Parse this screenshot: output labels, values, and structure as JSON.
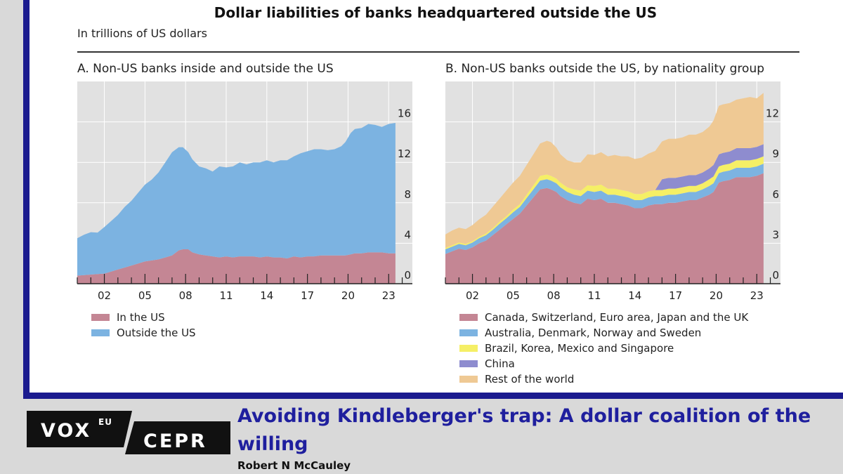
{
  "title": "Dollar liabilities of banks headquartered outside the US",
  "subtitle": "In trillions of US dollars",
  "footer": {
    "logo_vox": "VOX",
    "logo_eu": "EU",
    "logo_cepr": "CEPR",
    "article_title": "Avoiding Kindleberger's trap: A dollar coalition of the willing",
    "author": "Robert N McCauley"
  },
  "colors": {
    "in_us": "#c48694",
    "outside_us": "#7cb3e1",
    "g5": "#c48694",
    "adns": "#7cb3e1",
    "bkms": "#f5ef66",
    "china": "#8e8ccf",
    "rest": "#efc994",
    "plot_bg": "#e1e1e1",
    "frame": "#1b1b8f"
  },
  "chart_data": [
    {
      "type": "area",
      "stacked": true,
      "title": "A. Non-US banks inside and outside the US",
      "x_tick_labels": [
        "02",
        "05",
        "08",
        "11",
        "14",
        "17",
        "20",
        "23"
      ],
      "x_ticks": [
        2002,
        2005,
        2008,
        2011,
        2014,
        2017,
        2020,
        2023
      ],
      "y_ticks": [
        0,
        4,
        8,
        12,
        16
      ],
      "ylim": [
        0,
        20
      ],
      "xlim": [
        2000,
        2024.75
      ],
      "grid": true,
      "legend_position": "bottom-left",
      "x": [
        2000.0,
        2000.5,
        2001.0,
        2001.5,
        2002.0,
        2002.5,
        2003.0,
        2003.5,
        2004.0,
        2004.5,
        2005.0,
        2005.5,
        2006.0,
        2006.5,
        2007.0,
        2007.5,
        2007.8,
        2008.2,
        2008.5,
        2009.0,
        2009.5,
        2010.0,
        2010.5,
        2011.0,
        2011.5,
        2012.0,
        2012.5,
        2013.0,
        2013.5,
        2014.0,
        2014.5,
        2015.0,
        2015.5,
        2016.0,
        2016.5,
        2017.0,
        2017.5,
        2018.0,
        2018.5,
        2019.0,
        2019.5,
        2019.8,
        2020.2,
        2020.5,
        2021.0,
        2021.5,
        2022.0,
        2022.5,
        2023.0,
        2023.5
      ],
      "series": [
        {
          "name": "In the US",
          "values": [
            0.8,
            0.85,
            0.9,
            0.95,
            1.0,
            1.2,
            1.4,
            1.6,
            1.8,
            2.0,
            2.2,
            2.3,
            2.4,
            2.6,
            2.8,
            3.3,
            3.4,
            3.4,
            3.1,
            2.9,
            2.8,
            2.7,
            2.6,
            2.7,
            2.6,
            2.7,
            2.7,
            2.7,
            2.6,
            2.7,
            2.6,
            2.6,
            2.5,
            2.7,
            2.6,
            2.7,
            2.7,
            2.8,
            2.8,
            2.8,
            2.8,
            2.8,
            2.9,
            3.0,
            3.0,
            3.1,
            3.1,
            3.1,
            3.0,
            3.0
          ]
        },
        {
          "name": "Outside the US",
          "values": [
            3.7,
            4.0,
            4.2,
            4.1,
            4.6,
            5.0,
            5.4,
            6.0,
            6.4,
            7.0,
            7.6,
            8.0,
            8.6,
            9.4,
            10.2,
            10.2,
            10.1,
            9.6,
            9.2,
            8.7,
            8.6,
            8.4,
            9.0,
            8.8,
            9.0,
            9.3,
            9.1,
            9.3,
            9.4,
            9.5,
            9.4,
            9.6,
            9.7,
            9.9,
            10.3,
            10.4,
            10.6,
            10.5,
            10.4,
            10.5,
            10.8,
            11.2,
            12.0,
            12.3,
            12.4,
            12.7,
            12.6,
            12.4,
            12.8,
            12.9
          ]
        }
      ]
    },
    {
      "type": "area",
      "stacked": true,
      "title": "B. Non-US banks outside the US, by nationality group",
      "x_tick_labels": [
        "02",
        "05",
        "08",
        "11",
        "14",
        "17",
        "20",
        "23"
      ],
      "x_ticks": [
        2002,
        2005,
        2008,
        2011,
        2014,
        2017,
        2020,
        2023
      ],
      "y_ticks": [
        0,
        3,
        6,
        9,
        12
      ],
      "ylim": [
        0,
        15
      ],
      "xlim": [
        2000,
        2024.75
      ],
      "grid": true,
      "legend_position": "bottom-left",
      "x": [
        2000.0,
        2000.5,
        2001.0,
        2001.5,
        2002.0,
        2002.5,
        2003.0,
        2003.5,
        2004.0,
        2004.5,
        2005.0,
        2005.5,
        2006.0,
        2006.5,
        2007.0,
        2007.5,
        2007.8,
        2008.2,
        2008.5,
        2009.0,
        2009.5,
        2010.0,
        2010.5,
        2011.0,
        2011.5,
        2012.0,
        2012.5,
        2013.0,
        2013.5,
        2014.0,
        2014.5,
        2015.0,
        2015.5,
        2016.0,
        2016.5,
        2017.0,
        2017.5,
        2018.0,
        2018.5,
        2019.0,
        2019.5,
        2019.8,
        2020.2,
        2020.5,
        2021.0,
        2021.5,
        2022.0,
        2022.5,
        2023.0,
        2023.5
      ],
      "series": [
        {
          "name": "Canada, Switzerland, Euro area, Japan and the UK",
          "values": [
            2.2,
            2.4,
            2.6,
            2.5,
            2.7,
            3.0,
            3.2,
            3.6,
            4.0,
            4.4,
            4.8,
            5.2,
            5.8,
            6.4,
            7.0,
            7.1,
            7.0,
            6.8,
            6.5,
            6.2,
            6.0,
            5.9,
            6.3,
            6.2,
            6.3,
            6.0,
            6.0,
            5.9,
            5.8,
            5.6,
            5.6,
            5.8,
            5.9,
            5.9,
            6.0,
            6.0,
            6.1,
            6.2,
            6.2,
            6.4,
            6.6,
            6.8,
            7.5,
            7.6,
            7.7,
            7.9,
            7.9,
            7.9,
            8.0,
            8.2
          ]
        },
        {
          "name": "Australia, Denmark, Norway and Sweden",
          "values": [
            0.35,
            0.35,
            0.35,
            0.35,
            0.35,
            0.38,
            0.4,
            0.4,
            0.45,
            0.45,
            0.5,
            0.5,
            0.55,
            0.6,
            0.65,
            0.65,
            0.65,
            0.65,
            0.65,
            0.6,
            0.6,
            0.6,
            0.6,
            0.6,
            0.6,
            0.6,
            0.6,
            0.6,
            0.6,
            0.6,
            0.6,
            0.6,
            0.6,
            0.6,
            0.6,
            0.6,
            0.6,
            0.6,
            0.6,
            0.6,
            0.65,
            0.65,
            0.7,
            0.7,
            0.7,
            0.7,
            0.7,
            0.7,
            0.7,
            0.7
          ]
        },
        {
          "name": "Brazil, Korea, Mexico and Singapore",
          "values": [
            0.1,
            0.1,
            0.1,
            0.1,
            0.1,
            0.1,
            0.12,
            0.12,
            0.15,
            0.15,
            0.2,
            0.2,
            0.25,
            0.3,
            0.35,
            0.35,
            0.35,
            0.35,
            0.35,
            0.35,
            0.4,
            0.4,
            0.4,
            0.45,
            0.45,
            0.45,
            0.45,
            0.45,
            0.45,
            0.45,
            0.45,
            0.45,
            0.45,
            0.45,
            0.45,
            0.45,
            0.45,
            0.45,
            0.45,
            0.45,
            0.5,
            0.5,
            0.5,
            0.5,
            0.5,
            0.55,
            0.55,
            0.55,
            0.55,
            0.55
          ]
        },
        {
          "name": "China",
          "values": [
            0,
            0,
            0,
            0,
            0,
            0,
            0,
            0,
            0,
            0,
            0,
            0,
            0,
            0,
            0,
            0,
            0,
            0,
            0,
            0,
            0,
            0,
            0,
            0,
            0,
            0,
            0,
            0,
            0,
            0,
            0,
            0,
            0,
            0.8,
            0.8,
            0.8,
            0.8,
            0.8,
            0.8,
            0.8,
            0.8,
            0.85,
            0.9,
            0.9,
            0.9,
            0.9,
            0.9,
            0.9,
            0.9,
            0.9
          ]
        },
        {
          "name": "Rest of the world",
          "values": [
            1.0,
            1.1,
            1.1,
            1.1,
            1.2,
            1.3,
            1.4,
            1.6,
            1.7,
            1.9,
            2.0,
            2.1,
            2.2,
            2.3,
            2.4,
            2.5,
            2.5,
            2.3,
            2.1,
            2.0,
            2.0,
            2.1,
            2.3,
            2.3,
            2.4,
            2.4,
            2.5,
            2.5,
            2.6,
            2.6,
            2.7,
            2.8,
            2.9,
            2.8,
            2.9,
            2.9,
            2.9,
            3.0,
            3.0,
            3.0,
            3.1,
            3.3,
            3.6,
            3.6,
            3.6,
            3.6,
            3.7,
            3.8,
            3.6,
            3.8
          ]
        }
      ]
    }
  ]
}
